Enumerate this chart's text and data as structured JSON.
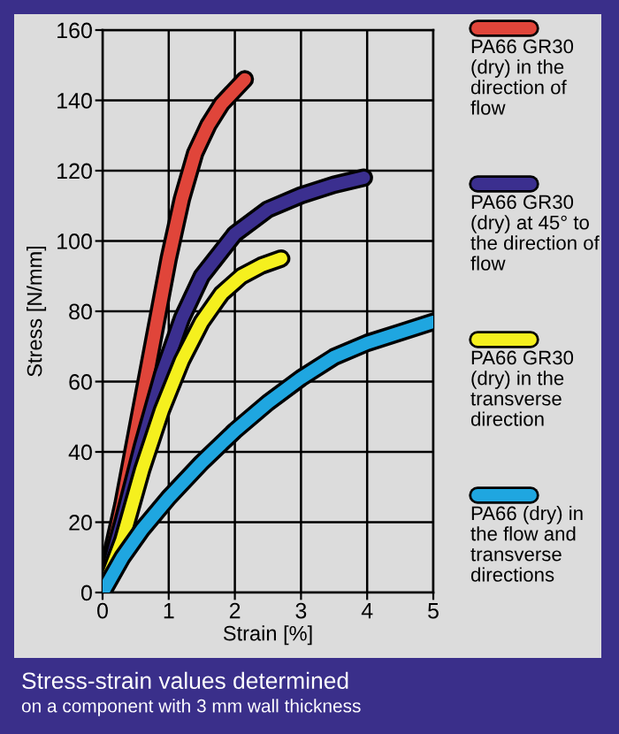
{
  "chart_data": {
    "type": "line",
    "xlabel": "Strain [%]",
    "ylabel": "Stress [N/mm]",
    "xlim": [
      0,
      5
    ],
    "ylim": [
      0,
      160
    ],
    "xticks": [
      0,
      1,
      2,
      3,
      4,
      5
    ],
    "yticks": [
      0,
      20,
      40,
      60,
      80,
      100,
      120,
      140,
      160
    ],
    "grid": true,
    "legend": "right",
    "marker": "none",
    "line_style": "solid",
    "series": [
      {
        "name": "PA66 GR30 (dry) in the direction of flow",
        "color": "#e0453a",
        "x": [
          0,
          0.3,
          0.5,
          0.7,
          0.9,
          1.0,
          1.2,
          1.4,
          1.6,
          1.8,
          2.15
        ],
        "values": [
          0,
          25,
          45,
          65,
          85,
          95,
          112,
          125,
          133,
          139,
          146
        ]
      },
      {
        "name": "PA66 GR30 (dry) at 45° to the direction of flow",
        "color": "#3b2f8f",
        "x": [
          0,
          0.3,
          0.6,
          0.9,
          1.2,
          1.5,
          2,
          2.5,
          3,
          3.5,
          3.95
        ],
        "values": [
          0,
          20,
          42,
          62,
          78,
          90,
          102,
          109,
          113,
          116,
          118
        ]
      },
      {
        "name": "PA66 GR30 (dry) in the transverse direction",
        "color": "#f5f01e",
        "x": [
          0,
          0.3,
          0.6,
          0.9,
          1.2,
          1.5,
          1.8,
          2.1,
          2.4,
          2.7
        ],
        "values": [
          0,
          15,
          35,
          52,
          66,
          77,
          85,
          90,
          93,
          95
        ]
      },
      {
        "name": "PA66 (dry) in the flow and transverse directions",
        "color": "#1fa6e0",
        "x": [
          0,
          0.3,
          0.6,
          1,
          1.5,
          2,
          2.5,
          3,
          3.5,
          4,
          4.5,
          5
        ],
        "values": [
          0,
          10,
          18,
          27,
          37,
          46,
          54,
          61,
          67,
          71,
          74,
          77
        ]
      }
    ],
    "annotations": [
      "Stress-strain values determined",
      "on a component with 3 mm wall thickness"
    ]
  }
}
